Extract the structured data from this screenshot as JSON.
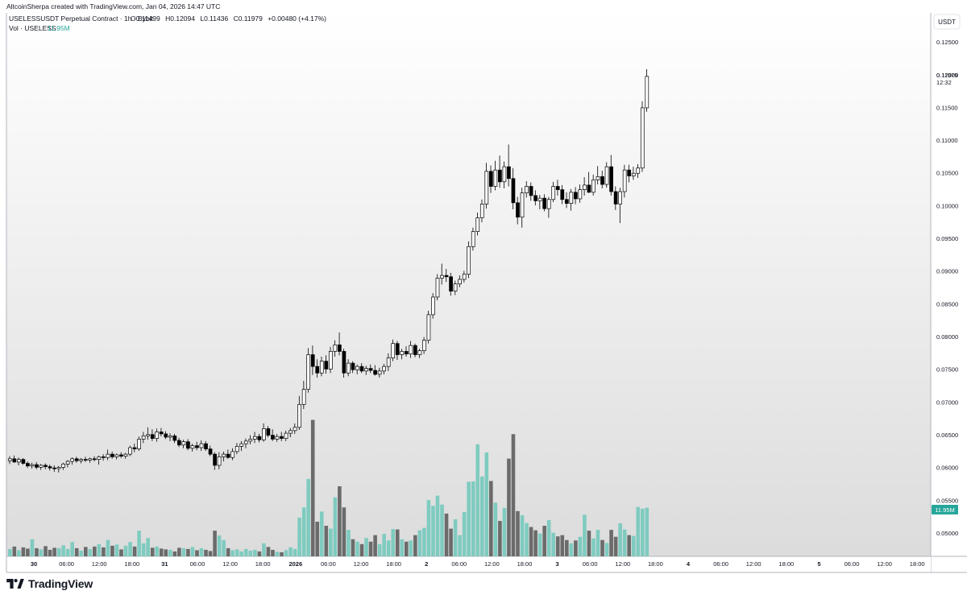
{
  "header": {
    "attribution": "AltcoinSherpa created with TradingView.com, Jan 04, 2026 14:47 UTC"
  },
  "legend": {
    "symbol": "USELESSUSDT Perpetual Contract · 1h · Bybit",
    "o_label": "O",
    "o_value": "0.11499",
    "h_label": "H",
    "h_value": "0.12094",
    "l_label": "L",
    "l_value": "0.11436",
    "c_label": "C",
    "c_value": "0.11979",
    "change": "+0.00480 (+4.17%)",
    "vol_label": "Vol · USELESS",
    "vol_value": "11.95M"
  },
  "price_axis": {
    "currency": "USDT",
    "ticks": [
      "0.12500",
      "0.12000",
      "0.11500",
      "0.11000",
      "0.10500",
      "0.10000",
      "0.09500",
      "0.09000",
      "0.08500",
      "0.08000",
      "0.07500",
      "0.07000",
      "0.06500",
      "0.06000",
      "0.05500",
      "0.05000"
    ],
    "last_price": "0.11979",
    "countdown": "12:32",
    "volume_tag": "11.95M"
  },
  "time_axis": {
    "ticks": [
      "30",
      "06:00",
      "12:00",
      "18:00",
      "31",
      "06:00",
      "12:00",
      "18:00",
      "2026",
      "06:00",
      "12:00",
      "18:00",
      "2",
      "06:00",
      "12:00",
      "18:00",
      "3",
      "06:00",
      "12:00",
      "18:00",
      "4",
      "06:00",
      "12:00",
      "18:00",
      "5",
      "06:00",
      "12:00",
      "18:00"
    ]
  },
  "branding": {
    "logo_text": "TradingView"
  },
  "colors": {
    "candle_up": "#ffffff",
    "candle_down": "#000000",
    "volume_up": "#7fcbc0",
    "volume_down": "#6b6b6b",
    "volume_tag_bg": "#26a69a",
    "legend_volume_text": "#26a69a"
  },
  "chart_data": {
    "type": "candlestick",
    "interval": "1h",
    "price_range": [
      0.0465,
      0.1295
    ],
    "volume_range": [
      0,
      34
    ],
    "volume_unit": "M",
    "candles": [
      {
        "o": 0.0611,
        "h": 0.0618,
        "l": 0.0606,
        "c": 0.0614,
        "v": 1.8
      },
      {
        "o": 0.0614,
        "h": 0.0619,
        "l": 0.0608,
        "c": 0.0609,
        "v": 2.4
      },
      {
        "o": 0.0609,
        "h": 0.0616,
        "l": 0.0604,
        "c": 0.0613,
        "v": 1.5
      },
      {
        "o": 0.0613,
        "h": 0.0615,
        "l": 0.0605,
        "c": 0.0607,
        "v": 2.2
      },
      {
        "o": 0.0607,
        "h": 0.061,
        "l": 0.06,
        "c": 0.0603,
        "v": 1.9
      },
      {
        "o": 0.0603,
        "h": 0.0608,
        "l": 0.0599,
        "c": 0.0605,
        "v": 4.2
      },
      {
        "o": 0.0605,
        "h": 0.0609,
        "l": 0.0598,
        "c": 0.0601,
        "v": 2.0
      },
      {
        "o": 0.0601,
        "h": 0.0606,
        "l": 0.0597,
        "c": 0.0604,
        "v": 1.7
      },
      {
        "o": 0.0604,
        "h": 0.0607,
        "l": 0.0598,
        "c": 0.0602,
        "v": 2.5
      },
      {
        "o": 0.0602,
        "h": 0.0605,
        "l": 0.0596,
        "c": 0.06,
        "v": 1.6
      },
      {
        "o": 0.06,
        "h": 0.0604,
        "l": 0.0594,
        "c": 0.0599,
        "v": 2.1
      },
      {
        "o": 0.0599,
        "h": 0.0603,
        "l": 0.0593,
        "c": 0.0601,
        "v": 2.0
      },
      {
        "o": 0.0601,
        "h": 0.0608,
        "l": 0.0597,
        "c": 0.0606,
        "v": 2.7
      },
      {
        "o": 0.0606,
        "h": 0.0612,
        "l": 0.0601,
        "c": 0.061,
        "v": 1.8
      },
      {
        "o": 0.061,
        "h": 0.0616,
        "l": 0.0605,
        "c": 0.0614,
        "v": 3.5
      },
      {
        "o": 0.0614,
        "h": 0.0617,
        "l": 0.0608,
        "c": 0.0611,
        "v": 2.0
      },
      {
        "o": 0.0611,
        "h": 0.0615,
        "l": 0.0607,
        "c": 0.0613,
        "v": 1.4
      },
      {
        "o": 0.0613,
        "h": 0.0617,
        "l": 0.0609,
        "c": 0.0612,
        "v": 2.3
      },
      {
        "o": 0.0612,
        "h": 0.0616,
        "l": 0.0608,
        "c": 0.0614,
        "v": 1.8
      },
      {
        "o": 0.0614,
        "h": 0.0618,
        "l": 0.061,
        "c": 0.0613,
        "v": 2.4
      },
      {
        "o": 0.0613,
        "h": 0.0619,
        "l": 0.0605,
        "c": 0.0617,
        "v": 3.0
      },
      {
        "o": 0.0617,
        "h": 0.0621,
        "l": 0.0611,
        "c": 0.0616,
        "v": 2.2
      },
      {
        "o": 0.0616,
        "h": 0.0628,
        "l": 0.0612,
        "c": 0.0621,
        "v": 4.0
      },
      {
        "o": 0.0621,
        "h": 0.0625,
        "l": 0.0614,
        "c": 0.0617,
        "v": 2.6
      },
      {
        "o": 0.0617,
        "h": 0.0622,
        "l": 0.0613,
        "c": 0.062,
        "v": 2.9
      },
      {
        "o": 0.062,
        "h": 0.0624,
        "l": 0.0615,
        "c": 0.0618,
        "v": 1.7
      },
      {
        "o": 0.0618,
        "h": 0.0623,
        "l": 0.0614,
        "c": 0.0621,
        "v": 2.6
      },
      {
        "o": 0.0621,
        "h": 0.0634,
        "l": 0.0618,
        "c": 0.0631,
        "v": 3.5
      },
      {
        "o": 0.0631,
        "h": 0.0637,
        "l": 0.0624,
        "c": 0.0629,
        "v": 2.4
      },
      {
        "o": 0.0629,
        "h": 0.0648,
        "l": 0.0626,
        "c": 0.0644,
        "v": 6.3
      },
      {
        "o": 0.0644,
        "h": 0.0655,
        "l": 0.0638,
        "c": 0.0649,
        "v": 3.2
      },
      {
        "o": 0.0649,
        "h": 0.0662,
        "l": 0.0643,
        "c": 0.0651,
        "v": 4.5
      },
      {
        "o": 0.0651,
        "h": 0.0659,
        "l": 0.0641,
        "c": 0.0645,
        "v": 2.1
      },
      {
        "o": 0.0645,
        "h": 0.066,
        "l": 0.064,
        "c": 0.0655,
        "v": 2.4
      },
      {
        "o": 0.0655,
        "h": 0.0661,
        "l": 0.0648,
        "c": 0.0652,
        "v": 1.9
      },
      {
        "o": 0.0652,
        "h": 0.0656,
        "l": 0.0644,
        "c": 0.0647,
        "v": 1.7
      },
      {
        "o": 0.0647,
        "h": 0.0653,
        "l": 0.0641,
        "c": 0.0649,
        "v": 1.6
      },
      {
        "o": 0.0649,
        "h": 0.0652,
        "l": 0.0638,
        "c": 0.0642,
        "v": 1.2
      },
      {
        "o": 0.0642,
        "h": 0.0646,
        "l": 0.0632,
        "c": 0.0635,
        "v": 2.1
      },
      {
        "o": 0.0635,
        "h": 0.0643,
        "l": 0.063,
        "c": 0.064,
        "v": 2.0
      },
      {
        "o": 0.064,
        "h": 0.0644,
        "l": 0.0627,
        "c": 0.063,
        "v": 1.8
      },
      {
        "o": 0.063,
        "h": 0.0637,
        "l": 0.0625,
        "c": 0.0634,
        "v": 2.3
      },
      {
        "o": 0.0634,
        "h": 0.064,
        "l": 0.0627,
        "c": 0.0631,
        "v": 1.5
      },
      {
        "o": 0.0631,
        "h": 0.0642,
        "l": 0.0626,
        "c": 0.0637,
        "v": 2.0
      },
      {
        "o": 0.0637,
        "h": 0.0641,
        "l": 0.0626,
        "c": 0.0629,
        "v": 1.6
      },
      {
        "o": 0.0629,
        "h": 0.0634,
        "l": 0.0618,
        "c": 0.0621,
        "v": 1.3
      },
      {
        "o": 0.0621,
        "h": 0.0624,
        "l": 0.0597,
        "c": 0.0604,
        "v": 6.3
      },
      {
        "o": 0.0604,
        "h": 0.0624,
        "l": 0.0598,
        "c": 0.0617,
        "v": 5.1
      },
      {
        "o": 0.0617,
        "h": 0.0625,
        "l": 0.061,
        "c": 0.0621,
        "v": 4.0
      },
      {
        "o": 0.0621,
        "h": 0.0628,
        "l": 0.0614,
        "c": 0.0616,
        "v": 2.0
      },
      {
        "o": 0.0616,
        "h": 0.063,
        "l": 0.0612,
        "c": 0.0625,
        "v": 1.5
      },
      {
        "o": 0.0625,
        "h": 0.0638,
        "l": 0.0621,
        "c": 0.0633,
        "v": 1.7
      },
      {
        "o": 0.0633,
        "h": 0.0641,
        "l": 0.0626,
        "c": 0.0637,
        "v": 1.2
      },
      {
        "o": 0.0637,
        "h": 0.0645,
        "l": 0.063,
        "c": 0.0641,
        "v": 1.8
      },
      {
        "o": 0.0641,
        "h": 0.065,
        "l": 0.0636,
        "c": 0.0644,
        "v": 1.4
      },
      {
        "o": 0.0644,
        "h": 0.0655,
        "l": 0.0638,
        "c": 0.0648,
        "v": 1.6
      },
      {
        "o": 0.0648,
        "h": 0.0652,
        "l": 0.0639,
        "c": 0.0643,
        "v": 1.2
      },
      {
        "o": 0.0643,
        "h": 0.0668,
        "l": 0.064,
        "c": 0.066,
        "v": 3.2
      },
      {
        "o": 0.066,
        "h": 0.0664,
        "l": 0.0647,
        "c": 0.065,
        "v": 2.3
      },
      {
        "o": 0.065,
        "h": 0.0659,
        "l": 0.0641,
        "c": 0.0644,
        "v": 1.6
      },
      {
        "o": 0.0644,
        "h": 0.0652,
        "l": 0.064,
        "c": 0.0648,
        "v": 1.1
      },
      {
        "o": 0.0648,
        "h": 0.0655,
        "l": 0.0641,
        "c": 0.0645,
        "v": 1.0
      },
      {
        "o": 0.0645,
        "h": 0.0657,
        "l": 0.0641,
        "c": 0.0653,
        "v": 1.5
      },
      {
        "o": 0.0653,
        "h": 0.0661,
        "l": 0.0647,
        "c": 0.0657,
        "v": 2.2
      },
      {
        "o": 0.0657,
        "h": 0.0668,
        "l": 0.0652,
        "c": 0.0662,
        "v": 1.8
      },
      {
        "o": 0.0662,
        "h": 0.071,
        "l": 0.0658,
        "c": 0.0697,
        "v": 9.5
      },
      {
        "o": 0.0697,
        "h": 0.0733,
        "l": 0.069,
        "c": 0.072,
        "v": 12.0
      },
      {
        "o": 0.072,
        "h": 0.0783,
        "l": 0.0715,
        "c": 0.0773,
        "v": 19.0
      },
      {
        "o": 0.0773,
        "h": 0.0787,
        "l": 0.0742,
        "c": 0.0755,
        "v": 33.5
      },
      {
        "o": 0.0755,
        "h": 0.0766,
        "l": 0.0738,
        "c": 0.0745,
        "v": 8.5
      },
      {
        "o": 0.0745,
        "h": 0.077,
        "l": 0.074,
        "c": 0.0763,
        "v": 11.0
      },
      {
        "o": 0.0763,
        "h": 0.0772,
        "l": 0.0744,
        "c": 0.0751,
        "v": 7.5
      },
      {
        "o": 0.0751,
        "h": 0.0785,
        "l": 0.0745,
        "c": 0.0778,
        "v": 6.8
      },
      {
        "o": 0.0778,
        "h": 0.0795,
        "l": 0.077,
        "c": 0.0788,
        "v": 14.5
      },
      {
        "o": 0.0788,
        "h": 0.0807,
        "l": 0.0772,
        "c": 0.0778,
        "v": 17.2
      },
      {
        "o": 0.0778,
        "h": 0.0782,
        "l": 0.0738,
        "c": 0.0745,
        "v": 12.0
      },
      {
        "o": 0.0745,
        "h": 0.0766,
        "l": 0.074,
        "c": 0.076,
        "v": 6.5
      },
      {
        "o": 0.076,
        "h": 0.0763,
        "l": 0.0745,
        "c": 0.075,
        "v": 4.2
      },
      {
        "o": 0.075,
        "h": 0.0758,
        "l": 0.0743,
        "c": 0.0755,
        "v": 3.6
      },
      {
        "o": 0.0755,
        "h": 0.076,
        "l": 0.0745,
        "c": 0.0748,
        "v": 3.0
      },
      {
        "o": 0.0748,
        "h": 0.0756,
        "l": 0.0742,
        "c": 0.0752,
        "v": 4.5
      },
      {
        "o": 0.0752,
        "h": 0.0758,
        "l": 0.0745,
        "c": 0.0749,
        "v": 3.6
      },
      {
        "o": 0.0749,
        "h": 0.0757,
        "l": 0.0741,
        "c": 0.0743,
        "v": 5.2
      },
      {
        "o": 0.0743,
        "h": 0.0753,
        "l": 0.0738,
        "c": 0.0748,
        "v": 3.0
      },
      {
        "o": 0.0748,
        "h": 0.0759,
        "l": 0.0743,
        "c": 0.0755,
        "v": 5.5
      },
      {
        "o": 0.0755,
        "h": 0.0775,
        "l": 0.0748,
        "c": 0.0768,
        "v": 3.9
      },
      {
        "o": 0.0768,
        "h": 0.0796,
        "l": 0.0763,
        "c": 0.079,
        "v": 6.7
      },
      {
        "o": 0.079,
        "h": 0.0794,
        "l": 0.0765,
        "c": 0.0773,
        "v": 6.6
      },
      {
        "o": 0.0773,
        "h": 0.0782,
        "l": 0.0766,
        "c": 0.0778,
        "v": 4.2
      },
      {
        "o": 0.0778,
        "h": 0.0786,
        "l": 0.077,
        "c": 0.0774,
        "v": 3.6
      },
      {
        "o": 0.0774,
        "h": 0.0794,
        "l": 0.0768,
        "c": 0.0787,
        "v": 3.9
      },
      {
        "o": 0.0787,
        "h": 0.079,
        "l": 0.0769,
        "c": 0.0773,
        "v": 5.2
      },
      {
        "o": 0.0773,
        "h": 0.0782,
        "l": 0.0768,
        "c": 0.0779,
        "v": 6.4
      },
      {
        "o": 0.0779,
        "h": 0.08,
        "l": 0.0774,
        "c": 0.0795,
        "v": 7.0
      },
      {
        "o": 0.0795,
        "h": 0.084,
        "l": 0.079,
        "c": 0.0834,
        "v": 13.8
      },
      {
        "o": 0.0834,
        "h": 0.0867,
        "l": 0.0828,
        "c": 0.0861,
        "v": 12.4
      },
      {
        "o": 0.0861,
        "h": 0.0896,
        "l": 0.0856,
        "c": 0.089,
        "v": 14.9
      },
      {
        "o": 0.089,
        "h": 0.0912,
        "l": 0.088,
        "c": 0.0894,
        "v": 12.7
      },
      {
        "o": 0.0894,
        "h": 0.0904,
        "l": 0.0884,
        "c": 0.0892,
        "v": 10.5
      },
      {
        "o": 0.0892,
        "h": 0.0898,
        "l": 0.0863,
        "c": 0.087,
        "v": 6.8
      },
      {
        "o": 0.087,
        "h": 0.0886,
        "l": 0.0864,
        "c": 0.0881,
        "v": 9.1
      },
      {
        "o": 0.0881,
        "h": 0.0894,
        "l": 0.0876,
        "c": 0.0888,
        "v": 5.2
      },
      {
        "o": 0.0888,
        "h": 0.0901,
        "l": 0.0883,
        "c": 0.0896,
        "v": 10.9
      },
      {
        "o": 0.0896,
        "h": 0.0946,
        "l": 0.089,
        "c": 0.0938,
        "v": 18.3
      },
      {
        "o": 0.0938,
        "h": 0.0967,
        "l": 0.0932,
        "c": 0.0961,
        "v": 18.4
      },
      {
        "o": 0.0961,
        "h": 0.099,
        "l": 0.0955,
        "c": 0.0982,
        "v": 27.5
      },
      {
        "o": 0.0982,
        "h": 0.101,
        "l": 0.0975,
        "c": 0.1003,
        "v": 19.6
      },
      {
        "o": 0.1003,
        "h": 0.1066,
        "l": 0.0996,
        "c": 0.1053,
        "v": 25.5
      },
      {
        "o": 0.1053,
        "h": 0.1062,
        "l": 0.102,
        "c": 0.103,
        "v": 18.5
      },
      {
        "o": 0.103,
        "h": 0.1069,
        "l": 0.1024,
        "c": 0.1055,
        "v": 13.2
      },
      {
        "o": 0.1055,
        "h": 0.1077,
        "l": 0.1028,
        "c": 0.1037,
        "v": 8.7
      },
      {
        "o": 0.1037,
        "h": 0.1068,
        "l": 0.1027,
        "c": 0.106,
        "v": 11.9
      },
      {
        "o": 0.106,
        "h": 0.1094,
        "l": 0.103,
        "c": 0.1042,
        "v": 24.0
      },
      {
        "o": 0.1042,
        "h": 0.1058,
        "l": 0.0995,
        "c": 0.1005,
        "v": 30.0
      },
      {
        "o": 0.1005,
        "h": 0.1014,
        "l": 0.0972,
        "c": 0.0983,
        "v": 11.1
      },
      {
        "o": 0.0983,
        "h": 0.1028,
        "l": 0.0967,
        "c": 0.102,
        "v": 10.1
      },
      {
        "o": 0.102,
        "h": 0.1038,
        "l": 0.1013,
        "c": 0.103,
        "v": 8.2
      },
      {
        "o": 0.103,
        "h": 0.1036,
        "l": 0.1008,
        "c": 0.1016,
        "v": 7.2
      },
      {
        "o": 0.1016,
        "h": 0.1024,
        "l": 0.1001,
        "c": 0.1008,
        "v": 6.4
      },
      {
        "o": 0.1008,
        "h": 0.1017,
        "l": 0.0995,
        "c": 0.1012,
        "v": 5.6
      },
      {
        "o": 0.1012,
        "h": 0.1018,
        "l": 0.0992,
        "c": 0.0996,
        "v": 7.5
      },
      {
        "o": 0.0996,
        "h": 0.1014,
        "l": 0.0982,
        "c": 0.101,
        "v": 8.9
      },
      {
        "o": 0.101,
        "h": 0.1037,
        "l": 0.1006,
        "c": 0.103,
        "v": 5.8
      },
      {
        "o": 0.103,
        "h": 0.104,
        "l": 0.1016,
        "c": 0.1025,
        "v": 4.9
      },
      {
        "o": 0.1025,
        "h": 0.1032,
        "l": 0.1003,
        "c": 0.101,
        "v": 5.2
      },
      {
        "o": 0.101,
        "h": 0.1021,
        "l": 0.0997,
        "c": 0.1004,
        "v": 4.0
      },
      {
        "o": 0.1004,
        "h": 0.1026,
        "l": 0.0993,
        "c": 0.1021,
        "v": 3.2
      },
      {
        "o": 0.1021,
        "h": 0.1029,
        "l": 0.1003,
        "c": 0.1011,
        "v": 3.9
      },
      {
        "o": 0.1011,
        "h": 0.1033,
        "l": 0.1005,
        "c": 0.1025,
        "v": 4.8
      },
      {
        "o": 0.1025,
        "h": 0.1044,
        "l": 0.1016,
        "c": 0.1032,
        "v": 10.2
      },
      {
        "o": 0.1032,
        "h": 0.1052,
        "l": 0.102,
        "c": 0.1021,
        "v": 6.3
      },
      {
        "o": 0.1021,
        "h": 0.1048,
        "l": 0.1016,
        "c": 0.104,
        "v": 4.4
      },
      {
        "o": 0.104,
        "h": 0.1061,
        "l": 0.1033,
        "c": 0.1045,
        "v": 6.5
      },
      {
        "o": 0.1045,
        "h": 0.1054,
        "l": 0.1027,
        "c": 0.1033,
        "v": 4.0
      },
      {
        "o": 0.1033,
        "h": 0.1067,
        "l": 0.1028,
        "c": 0.106,
        "v": 3.3
      },
      {
        "o": 0.106,
        "h": 0.1078,
        "l": 0.1016,
        "c": 0.1022,
        "v": 6.5
      },
      {
        "o": 0.1022,
        "h": 0.103,
        "l": 0.0994,
        "c": 0.1003,
        "v": 4.8
      },
      {
        "o": 0.1003,
        "h": 0.1028,
        "l": 0.0974,
        "c": 0.1022,
        "v": 8.1
      },
      {
        "o": 0.1022,
        "h": 0.1063,
        "l": 0.1013,
        "c": 0.1055,
        "v": 6.6
      },
      {
        "o": 0.1055,
        "h": 0.1063,
        "l": 0.1036,
        "c": 0.1046,
        "v": 5.2
      },
      {
        "o": 0.1046,
        "h": 0.106,
        "l": 0.104,
        "c": 0.105,
        "v": 5.0
      },
      {
        "o": 0.105,
        "h": 0.1064,
        "l": 0.1043,
        "c": 0.1058,
        "v": 12.1
      },
      {
        "o": 0.1058,
        "h": 0.116,
        "l": 0.1052,
        "c": 0.115,
        "v": 11.7
      },
      {
        "o": 0.115,
        "h": 0.1209,
        "l": 0.1144,
        "c": 0.1198,
        "v": 11.95
      }
    ]
  }
}
